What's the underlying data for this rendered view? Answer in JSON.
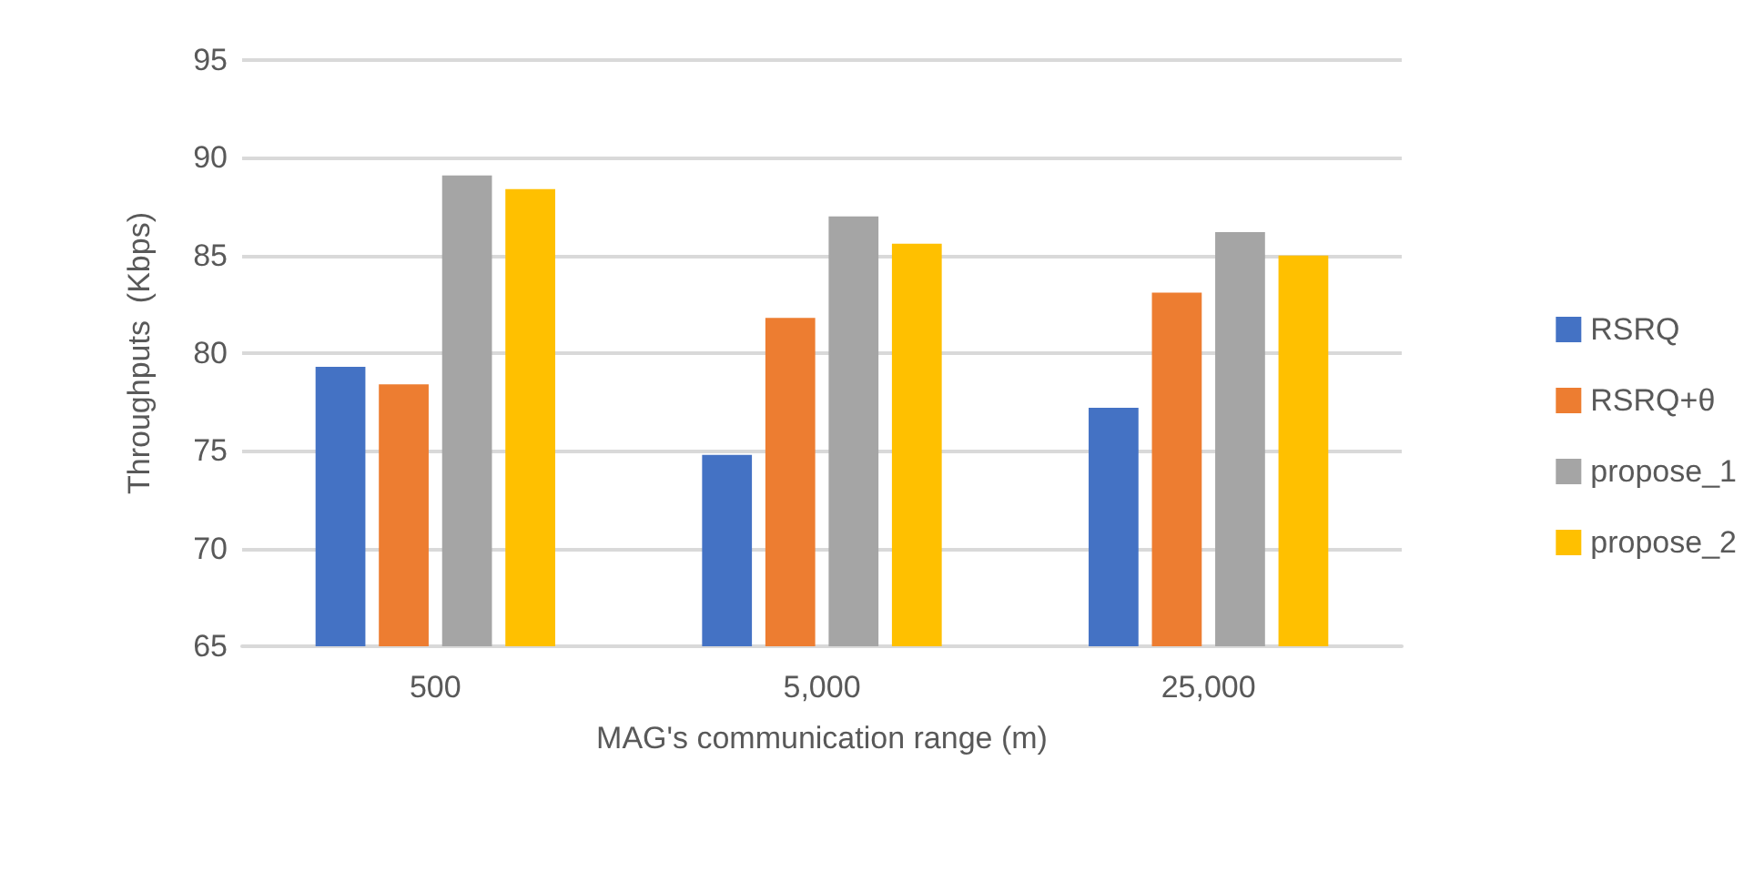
{
  "chart_data": {
    "type": "bar",
    "xlabel": "MAG's communication range (m)",
    "ylabel": "Throughputs  (Kbps)",
    "categories": [
      "500",
      "5,000",
      "25,000"
    ],
    "series": [
      {
        "name": "RSRQ",
        "color": "#4472c4",
        "values": [
          79.3,
          74.8,
          77.2
        ]
      },
      {
        "name": "RSRQ+θ",
        "color": "#ed7d31",
        "values": [
          78.4,
          81.8,
          83.1
        ]
      },
      {
        "name": "propose_1",
        "color": "#a5a5a5",
        "values": [
          89.1,
          87.0,
          86.2
        ]
      },
      {
        "name": "propose_2",
        "color": "#ffc000",
        "values": [
          88.4,
          85.6,
          85.0
        ]
      }
    ],
    "ylim": [
      65,
      95
    ],
    "yticks": [
      65,
      70,
      75,
      80,
      85,
      90,
      95
    ],
    "grid": "y",
    "legend": "right"
  }
}
